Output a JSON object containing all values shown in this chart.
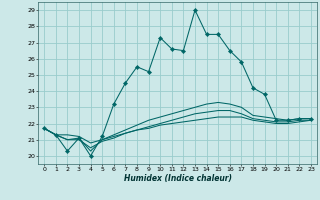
{
  "xlabel": "Humidex (Indice chaleur)",
  "bg_color": "#cce8e8",
  "grid_color": "#99cccc",
  "line_color": "#006666",
  "xlim": [
    -0.5,
    23.5
  ],
  "ylim": [
    19.5,
    29.5
  ],
  "yticks": [
    20,
    21,
    22,
    23,
    24,
    25,
    26,
    27,
    28,
    29
  ],
  "xticks": [
    0,
    1,
    2,
    3,
    4,
    5,
    6,
    7,
    8,
    9,
    10,
    11,
    12,
    13,
    14,
    15,
    16,
    17,
    18,
    19,
    20,
    21,
    22,
    23
  ],
  "line1_x": [
    0,
    1,
    2,
    3,
    4,
    5,
    6,
    7,
    8,
    9,
    10,
    11,
    12,
    13,
    14,
    15,
    16,
    17,
    18,
    19,
    20,
    21,
    22,
    23
  ],
  "line1_y": [
    21.7,
    21.3,
    20.3,
    21.1,
    20.0,
    21.2,
    23.2,
    24.5,
    25.5,
    25.2,
    27.3,
    26.6,
    26.5,
    29.0,
    27.5,
    27.5,
    26.5,
    25.8,
    24.2,
    23.8,
    22.2,
    22.2,
    22.3,
    22.3
  ],
  "line2_x": [
    0,
    1,
    2,
    3,
    4,
    5,
    6,
    7,
    8,
    9,
    10,
    11,
    12,
    13,
    14,
    15,
    16,
    17,
    18,
    19,
    20,
    21,
    22,
    23
  ],
  "line2_y": [
    21.7,
    21.3,
    21.3,
    21.2,
    20.8,
    21.0,
    21.2,
    21.4,
    21.6,
    21.7,
    21.9,
    22.0,
    22.1,
    22.2,
    22.3,
    22.4,
    22.4,
    22.4,
    22.2,
    22.1,
    22.0,
    22.0,
    22.1,
    22.2
  ],
  "line3_x": [
    0,
    1,
    2,
    3,
    4,
    5,
    6,
    7,
    8,
    9,
    10,
    11,
    12,
    13,
    14,
    15,
    16,
    17,
    18,
    19,
    20,
    21,
    22,
    23
  ],
  "line3_y": [
    21.7,
    21.3,
    21.0,
    21.0,
    20.5,
    20.9,
    21.1,
    21.4,
    21.6,
    21.8,
    22.0,
    22.2,
    22.4,
    22.6,
    22.7,
    22.8,
    22.8,
    22.6,
    22.3,
    22.2,
    22.1,
    22.1,
    22.2,
    22.2
  ],
  "line4_x": [
    0,
    1,
    2,
    3,
    4,
    5,
    6,
    7,
    8,
    9,
    10,
    11,
    12,
    13,
    14,
    15,
    16,
    17,
    18,
    19,
    20,
    21,
    22,
    23
  ],
  "line4_y": [
    21.7,
    21.3,
    21.0,
    21.1,
    20.3,
    21.0,
    21.3,
    21.6,
    21.9,
    22.2,
    22.4,
    22.6,
    22.8,
    23.0,
    23.2,
    23.3,
    23.2,
    23.0,
    22.5,
    22.4,
    22.3,
    22.2,
    22.3,
    22.3
  ]
}
